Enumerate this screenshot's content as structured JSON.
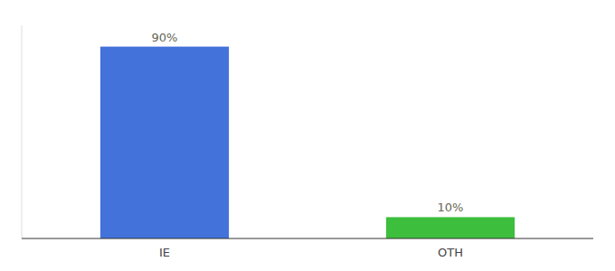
{
  "chart_data": {
    "type": "bar",
    "categories": [
      "IE",
      "OTH"
    ],
    "values": [
      90,
      10
    ],
    "value_labels": [
      "90%",
      "10%"
    ],
    "colors": [
      "#4472DB",
      "#3DBF3D"
    ],
    "ylim": [
      0,
      100
    ],
    "data_labels": true,
    "tick_labels": "x"
  }
}
